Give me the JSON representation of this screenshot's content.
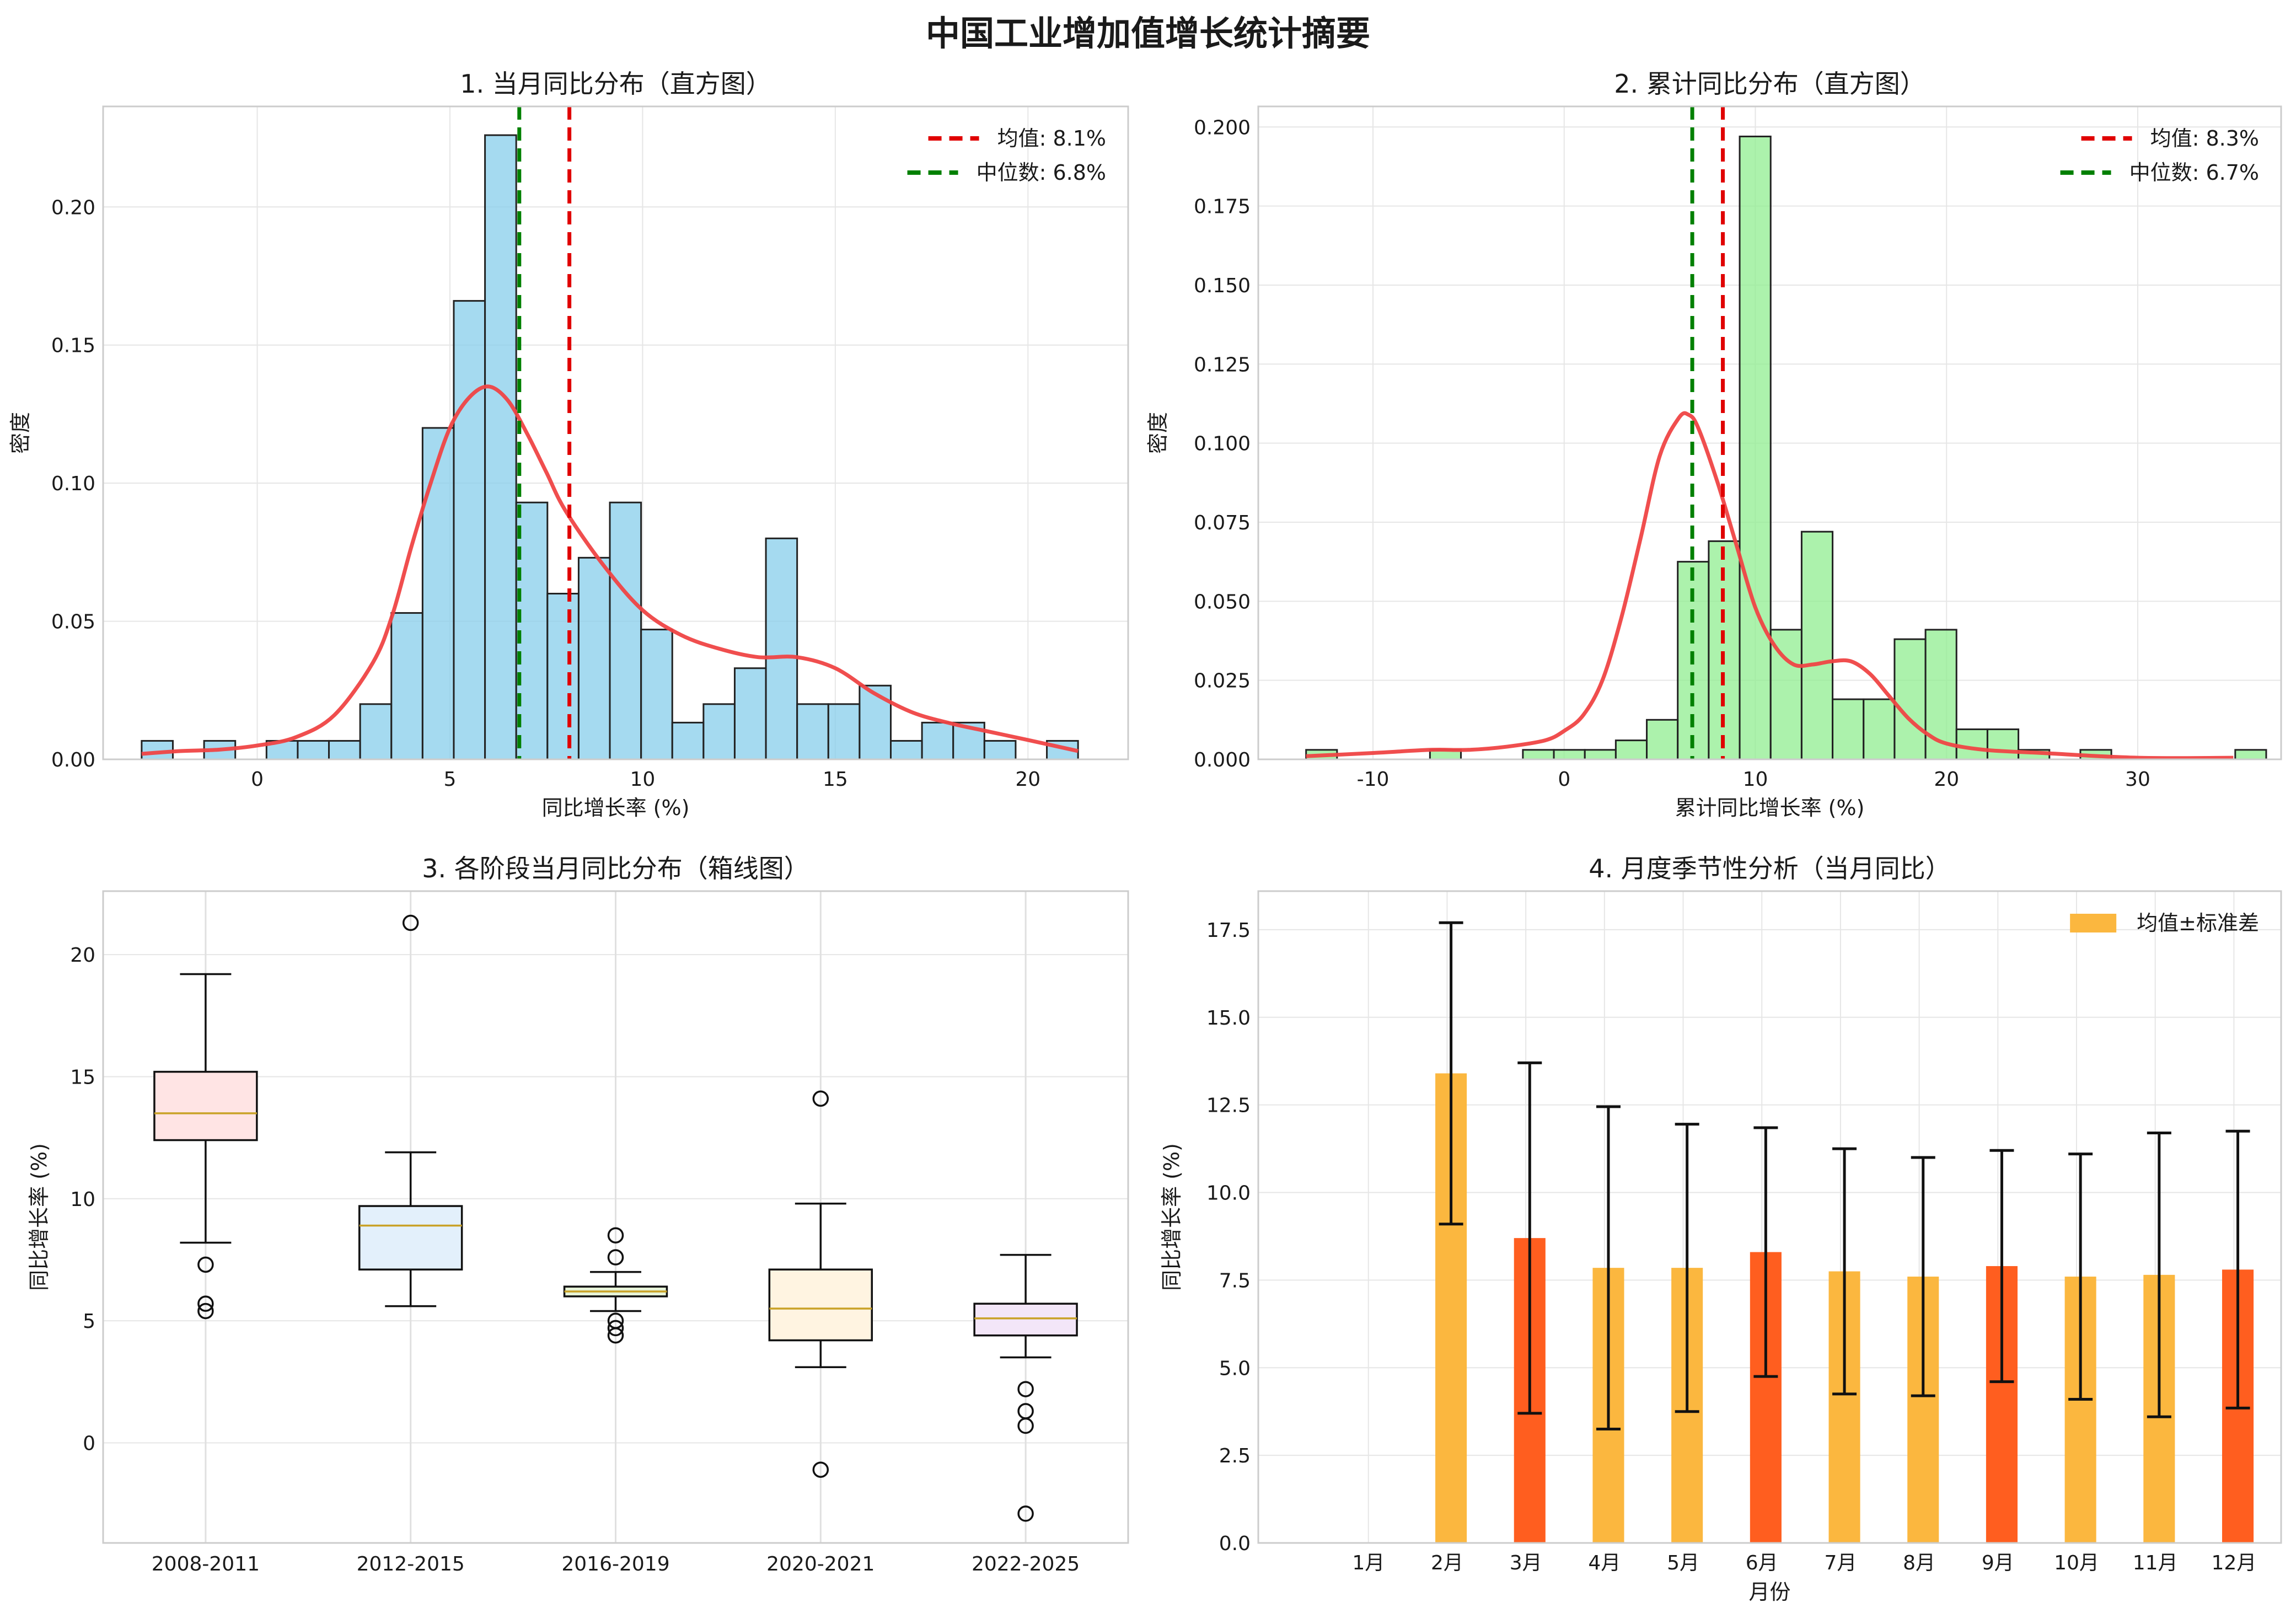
{
  "suptitle": "中国工业增加值增长统计摘要",
  "chart_data": [
    {
      "type": "bar",
      "subtype": "histogram",
      "title": "1. 当月同比分布（直方图）",
      "xlabel": "同比增长率 (%)",
      "ylabel": "密度",
      "xlim": [
        -4,
        22.6
      ],
      "ylim": [
        0,
        0.2364
      ],
      "xticks": [
        0,
        5,
        10,
        15,
        20
      ],
      "xtick_labels": [
        "0",
        "5",
        "10",
        "15",
        "20"
      ],
      "yticks": [
        0,
        0.05,
        0.1,
        0.15,
        0.2
      ],
      "ytick_labels": [
        "0.00",
        "0.05",
        "0.10",
        "0.15",
        "0.20"
      ],
      "grid": true,
      "bar_color": "#87ceeb",
      "bin_start": -3.0,
      "bin_width": 0.81,
      "density": [
        0.0067,
        0,
        0.0067,
        0,
        0.0067,
        0.0067,
        0.0067,
        0.02,
        0.053,
        0.12,
        0.166,
        0.226,
        0.093,
        0.06,
        0.073,
        0.093,
        0.047,
        0.0133,
        0.02,
        0.033,
        0.08,
        0.02,
        0.02,
        0.0267,
        0.0067,
        0.0133,
        0.0133,
        0.0067,
        0,
        0.0067
      ],
      "kde": {
        "name": "KDE",
        "color": "#ef4444",
        "x": [
          -3,
          -2,
          -1,
          0,
          1,
          2,
          3,
          3.5,
          4,
          4.5,
          5,
          5.5,
          6,
          6.5,
          7,
          7.5,
          8,
          9,
          10,
          11,
          12,
          13,
          14,
          15,
          16,
          17,
          18,
          19,
          20,
          21.3
        ],
        "y": [
          0.002,
          0.003,
          0.0035,
          0.005,
          0.008,
          0.016,
          0.035,
          0.052,
          0.077,
          0.1,
          0.12,
          0.131,
          0.135,
          0.13,
          0.118,
          0.104,
          0.09,
          0.07,
          0.054,
          0.045,
          0.04,
          0.037,
          0.037,
          0.033,
          0.024,
          0.017,
          0.013,
          0.01,
          0.007,
          0.003
        ]
      },
      "reference_lines": [
        {
          "name": "均值: 8.1%",
          "x": 8.1,
          "color": "#e00000"
        },
        {
          "name": "中位数: 6.8%",
          "x": 6.8,
          "color": "#008000"
        }
      ],
      "legend_position": "top-right"
    },
    {
      "type": "bar",
      "subtype": "histogram",
      "title": "2. 累计同比分布（直方图）",
      "xlabel": "累计同比增长率 (%)",
      "ylabel": "密度",
      "xlim": [
        -16,
        37.5
      ],
      "ylim": [
        0,
        0.2065
      ],
      "xticks": [
        -10,
        0,
        10,
        20,
        30
      ],
      "xtick_labels": [
        "-10",
        "0",
        "10",
        "20",
        "30"
      ],
      "yticks": [
        0,
        0.025,
        0.05,
        0.075,
        0.1,
        0.125,
        0.15,
        0.175,
        0.2
      ],
      "ytick_labels": [
        "0.000",
        "0.025",
        "0.050",
        "0.075",
        "0.100",
        "0.125",
        "0.150",
        "0.175",
        "0.200"
      ],
      "grid": true,
      "bar_color": "#90ee90",
      "bin_start": -13.5,
      "bin_width": 1.62,
      "density": [
        0.003,
        0,
        0,
        0,
        0.003,
        0,
        0,
        0.003,
        0.003,
        0.003,
        0.006,
        0.0125,
        0.0625,
        0.069,
        0.197,
        0.041,
        0.072,
        0.019,
        0.019,
        0.038,
        0.041,
        0.0095,
        0.0095,
        0.003,
        0,
        0.003,
        0,
        0,
        0,
        0,
        0.003
      ],
      "kde": {
        "name": "KDE",
        "color": "#ef4444",
        "x": [
          -13.5,
          -10,
          -7,
          -5,
          -3,
          -1,
          0,
          1,
          2,
          3,
          4,
          5,
          6,
          6.5,
          7,
          8,
          9,
          10,
          11,
          12,
          13,
          14,
          15,
          16,
          17,
          18,
          19,
          20,
          22,
          25,
          30,
          35
        ],
        "y": [
          0.001,
          0.002,
          0.003,
          0.003,
          0.004,
          0.006,
          0.009,
          0.014,
          0.025,
          0.045,
          0.07,
          0.096,
          0.108,
          0.109,
          0.105,
          0.088,
          0.068,
          0.048,
          0.036,
          0.03,
          0.03,
          0.031,
          0.031,
          0.027,
          0.02,
          0.013,
          0.008,
          0.005,
          0.003,
          0.002,
          0.0005,
          0.0005
        ]
      },
      "reference_lines": [
        {
          "name": "均值: 8.3%",
          "x": 8.3,
          "color": "#e00000"
        },
        {
          "name": "中位数: 6.7%",
          "x": 6.7,
          "color": "#008000"
        }
      ],
      "legend_position": "top-right"
    },
    {
      "type": "box",
      "title": "3. 各阶段当月同比分布（箱线图）",
      "xlabel": "",
      "ylabel": "同比增长率 (%)",
      "ylim": [
        -4.1,
        22.6
      ],
      "yticks": [
        0,
        5,
        10,
        15,
        20
      ],
      "ytick_labels": [
        "0",
        "5",
        "10",
        "15",
        "20"
      ],
      "grid": true,
      "categories": [
        "2008-2011",
        "2012-2015",
        "2016-2019",
        "2020-2021",
        "2022-2025"
      ],
      "boxes": [
        {
          "q1": 12.4,
          "median": 13.5,
          "q3": 15.2,
          "whislo": 8.2,
          "whishi": 19.2,
          "fliers": [
            7.3,
            5.7,
            5.4
          ],
          "color": "#ffe4e4"
        },
        {
          "q1": 7.1,
          "median": 8.9,
          "q3": 9.7,
          "whislo": 5.6,
          "whishi": 11.9,
          "fliers": [
            21.3
          ],
          "color": "#e3f0fb"
        },
        {
          "q1": 6.0,
          "median": 6.2,
          "q3": 6.4,
          "whislo": 5.4,
          "whishi": 7.0,
          "fliers": [
            8.5,
            7.6,
            5.0,
            4.7,
            4.4
          ],
          "color": "#e6f3d7"
        },
        {
          "q1": 4.2,
          "median": 5.5,
          "q3": 7.1,
          "whislo": 3.1,
          "whishi": 9.8,
          "fliers": [
            14.1,
            -1.1
          ],
          "color": "#fff4e1"
        },
        {
          "q1": 4.4,
          "median": 5.1,
          "q3": 5.7,
          "whislo": 3.5,
          "whishi": 7.7,
          "fliers": [
            2.2,
            1.3,
            0.7,
            -2.9
          ],
          "color": "#f3e6f8"
        }
      ],
      "median_color": "#c9a227"
    },
    {
      "type": "bar",
      "title": "4. 月度季节性分析（当月同比）",
      "xlabel": "月份",
      "ylabel": "同比增长率 (%)",
      "ylim": [
        0,
        18.6
      ],
      "yticks": [
        0,
        2.5,
        5,
        7.5,
        10,
        12.5,
        15,
        17.5
      ],
      "ytick_labels": [
        "0.0",
        "2.5",
        "5.0",
        "7.5",
        "10.0",
        "12.5",
        "15.0",
        "17.5"
      ],
      "grid": true,
      "categories": [
        "1月",
        "2月",
        "3月",
        "4月",
        "5月",
        "6月",
        "7月",
        "8月",
        "9月",
        "10月",
        "11月",
        "12月"
      ],
      "series": [
        {
          "name": "均值±标准差",
          "values": [
            null,
            13.4,
            8.7,
            7.85,
            7.85,
            8.3,
            7.75,
            7.6,
            7.9,
            7.6,
            7.65,
            7.8
          ],
          "errors": [
            null,
            4.3,
            5.0,
            4.6,
            4.1,
            3.55,
            3.5,
            3.4,
            3.3,
            3.5,
            4.05,
            3.95
          ],
          "colors": [
            "#fbb73f",
            "#fbb73f",
            "#ff5e1f",
            "#fbb73f",
            "#fbb73f",
            "#ff5e1f",
            "#fbb73f",
            "#fbb73f",
            "#ff5e1f",
            "#fbb73f",
            "#fbb73f",
            "#ff5e1f"
          ]
        }
      ],
      "legend_position": "top-right",
      "legend_color": "#fbb73f"
    }
  ]
}
